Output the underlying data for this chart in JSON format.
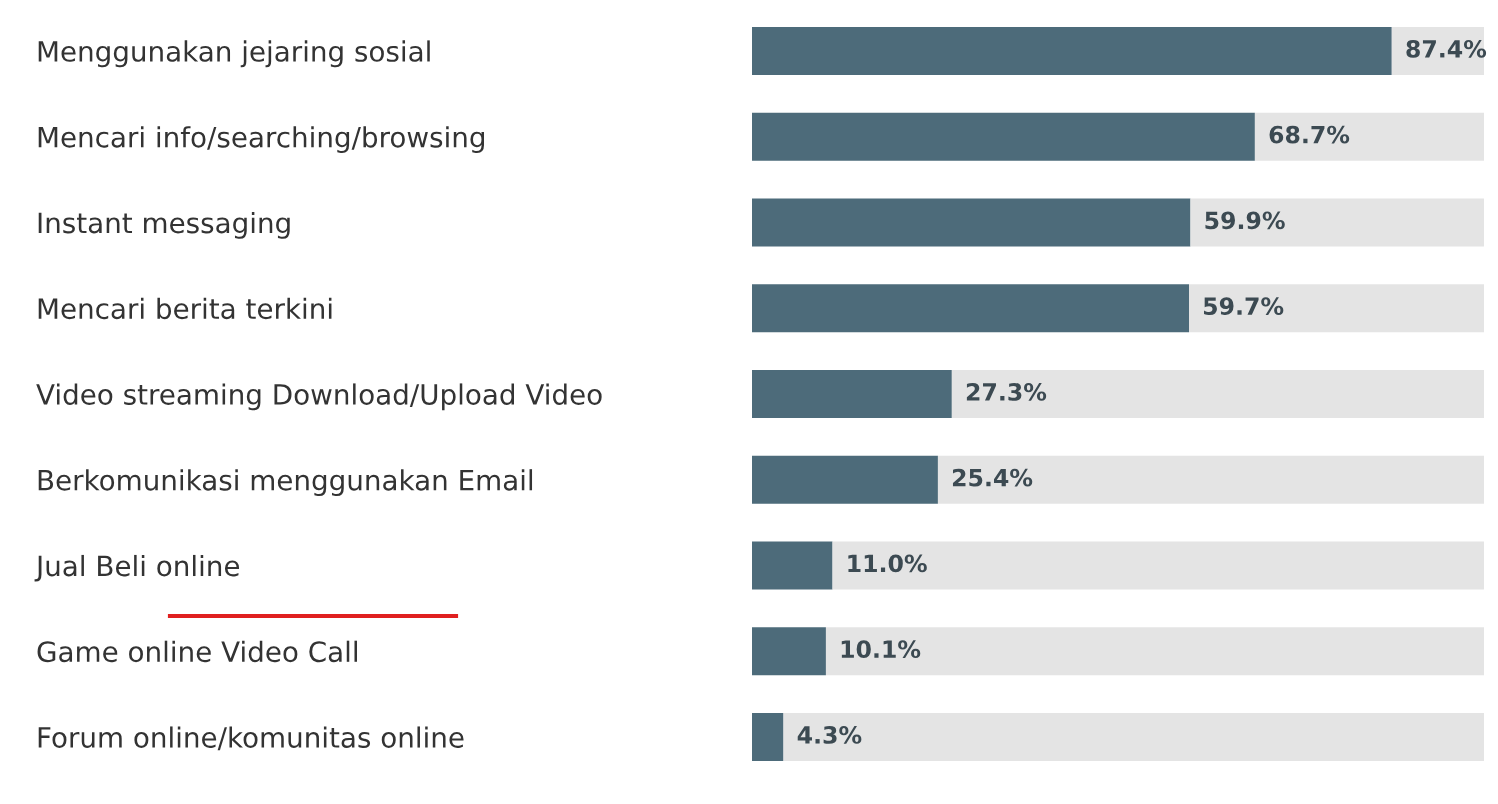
{
  "chart_data": {
    "type": "bar",
    "orientation": "horizontal",
    "stacked": true,
    "categories": [
      "Menggunakan jejaring sosial",
      "Mencari info/searching/browsing",
      "Instant messaging",
      "Mencari berita terkini",
      "Video streaming Download/Upload Video",
      "Berkomunikasi menggunakan Email",
      "Jual Beli online",
      "Game online Video Call",
      "Forum online/komunitas online"
    ],
    "series": [
      {
        "color": "#4d6b7a",
        "values": [
          87.4,
          68.7,
          59.9,
          59.7,
          27.3,
          25.4,
          11.0,
          10.1,
          4.3
        ],
        "value_labels": [
          "87.4%",
          "68.7%",
          "59.9%",
          "59.7%",
          "27.3%",
          "25.4%",
          "11.0%",
          "10.1%",
          "4.3%"
        ]
      },
      {
        "color": "#e4e4e4",
        "values": [
          12.6,
          31.3,
          40.1,
          40.3,
          72.7,
          74.6,
          89.0,
          89.9,
          95.7
        ]
      }
    ],
    "xlim": [
      0,
      100
    ],
    "tick_labels": "y",
    "grid": false
  }
}
